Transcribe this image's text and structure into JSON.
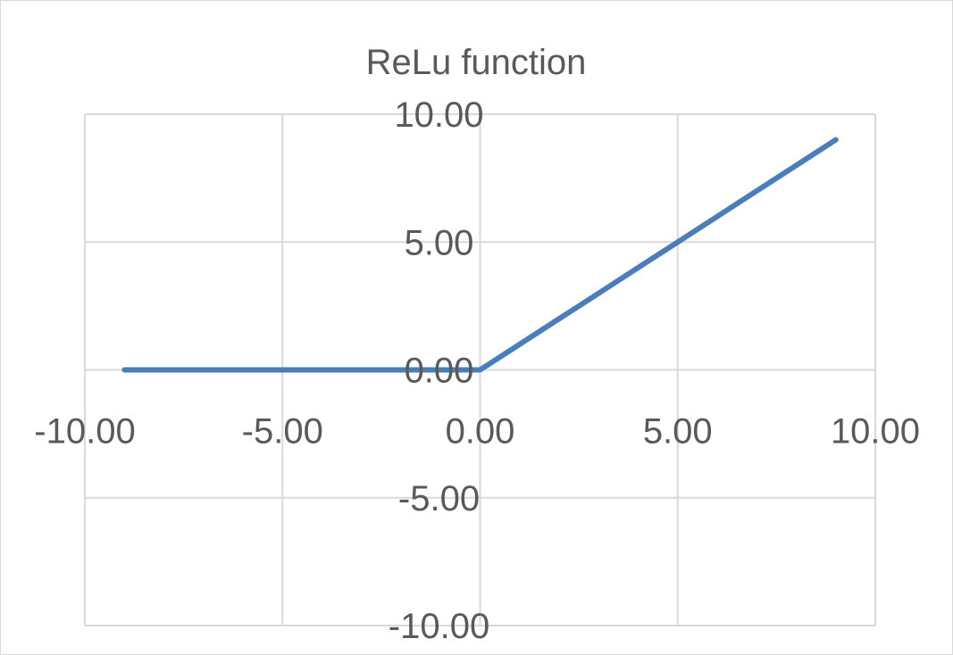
{
  "chart_data": {
    "type": "scatter",
    "mode": "lines",
    "title": "ReLu function",
    "xlabel": "",
    "ylabel": "",
    "xlim": [
      -10,
      10
    ],
    "ylim": [
      -10,
      10
    ],
    "x_ticks": [
      -10,
      -5,
      0,
      5,
      10
    ],
    "y_ticks": [
      -10,
      -5,
      0,
      5,
      10
    ],
    "x_tick_labels": [
      "-10.00",
      "-5.00",
      "0.00",
      "5.00",
      "10.00"
    ],
    "y_tick_labels": [
      "-10.00",
      "-5.00",
      "0.00",
      "5.00",
      "10.00"
    ],
    "grid": true,
    "legend": false,
    "series": [
      {
        "x": [
          -9,
          -8,
          -7,
          -6,
          -5,
          -4,
          -3,
          -2,
          -1,
          0,
          1,
          2,
          3,
          4,
          5,
          6,
          7,
          8,
          9
        ],
        "y": [
          0,
          0,
          0,
          0,
          0,
          0,
          0,
          0,
          0,
          0,
          1,
          2,
          3,
          4,
          5,
          6,
          7,
          8,
          9
        ],
        "color": "#4a7ebb"
      }
    ]
  }
}
